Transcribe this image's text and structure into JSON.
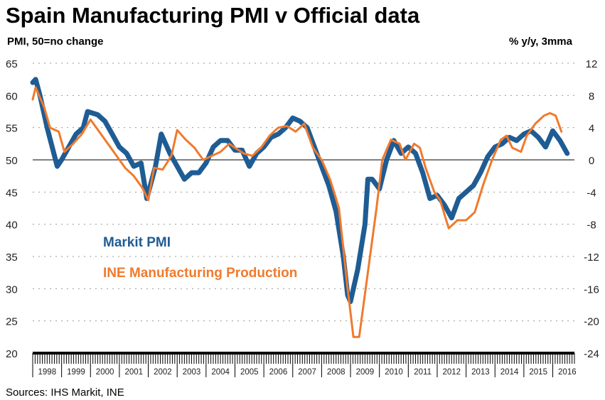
{
  "chart_data": {
    "type": "line",
    "title": "Spain Manufacturing PMI v Official data",
    "ylabel_left": "PMI, 50=no change",
    "ylabel_right": "% y/y, 3mma",
    "source": "Sources: IHS Markit, INE",
    "ylim_left": [
      20,
      65
    ],
    "ylim_right": [
      -24,
      12
    ],
    "yticks_left": [
      "65",
      "60",
      "55",
      "50",
      "45",
      "40",
      "35",
      "30",
      "25",
      "20"
    ],
    "yticks_right": [
      "12",
      "8",
      "4",
      "0",
      "-4",
      "-8",
      "-12",
      "-16",
      "-20",
      "-24"
    ],
    "xlim": [
      1998,
      2016.75
    ],
    "xticks": [
      "1998",
      "1999",
      "2000",
      "2001",
      "2002",
      "2003",
      "2004",
      "2005",
      "2006",
      "2007",
      "2008",
      "2009",
      "2010",
      "2011",
      "2012",
      "2013",
      "2014",
      "2015",
      "2016"
    ],
    "grid": "horizontal dotted",
    "colors": {
      "pmi": "#1f5c94",
      "ine": "#f07a2c"
    },
    "series": [
      {
        "name": "Markit PMI",
        "axis": "left",
        "x": [
          1998.0,
          1998.1,
          1998.25,
          1998.5,
          1998.85,
          1999.0,
          1999.25,
          1999.5,
          1999.75,
          1999.9,
          2000.25,
          2000.5,
          2000.75,
          2001.0,
          2001.25,
          2001.5,
          2001.75,
          2001.95,
          2002.25,
          2002.45,
          2002.75,
          2003.0,
          2003.25,
          2003.5,
          2003.75,
          2004.0,
          2004.25,
          2004.5,
          2004.75,
          2005.0,
          2005.25,
          2005.5,
          2005.75,
          2006.0,
          2006.25,
          2006.5,
          2006.75,
          2007.0,
          2007.25,
          2007.5,
          2007.75,
          2008.0,
          2008.25,
          2008.5,
          2008.75,
          2008.9,
          2009.0,
          2009.25,
          2009.5,
          2009.6,
          2009.75,
          2010.0,
          2010.25,
          2010.5,
          2010.75,
          2011.0,
          2011.25,
          2011.5,
          2011.75,
          2012.0,
          2012.25,
          2012.5,
          2012.75,
          2013.0,
          2013.25,
          2013.5,
          2013.75,
          2014.0,
          2014.25,
          2014.5,
          2014.75,
          2015.0,
          2015.25,
          2015.5,
          2015.75,
          2016.0,
          2016.25,
          2016.5
        ],
        "values": [
          62,
          62.5,
          60,
          55,
          49,
          50,
          52,
          54,
          55,
          57.5,
          57,
          56,
          54,
          52,
          51,
          49,
          49.5,
          44,
          49,
          54,
          51,
          49,
          47,
          48,
          48,
          49.5,
          52,
          53,
          53,
          51.5,
          51.5,
          49,
          51,
          52,
          53.5,
          54,
          55,
          56.5,
          56,
          55,
          52,
          49,
          46,
          42,
          35,
          29,
          28,
          33,
          40,
          47,
          47,
          45.5,
          50,
          53,
          51,
          52,
          51,
          48,
          44,
          44.5,
          43,
          41,
          44,
          45,
          46,
          48,
          50.5,
          52,
          52.5,
          53.5,
          53,
          54,
          54.5,
          53.5,
          52,
          54.5,
          53,
          51
        ]
      },
      {
        "name": "INE Manufacturing Production",
        "axis": "right",
        "x": [
          1998.0,
          1998.1,
          1998.4,
          1998.6,
          1998.9,
          1999.1,
          1999.4,
          1999.7,
          2000.0,
          2000.3,
          2000.6,
          2000.9,
          2001.2,
          2001.5,
          2001.8,
          2002.0,
          2002.2,
          2002.5,
          2002.8,
          2003.0,
          2003.3,
          2003.6,
          2003.9,
          2004.2,
          2004.5,
          2004.8,
          2005.0,
          2005.3,
          2005.6,
          2005.9,
          2006.2,
          2006.5,
          2006.8,
          2007.1,
          2007.4,
          2007.7,
          2008.0,
          2008.3,
          2008.6,
          2008.9,
          2009.1,
          2009.3,
          2009.6,
          2009.9,
          2010.1,
          2010.4,
          2010.7,
          2010.9,
          2011.2,
          2011.4,
          2011.6,
          2011.9,
          2012.1,
          2012.4,
          2012.7,
          2013.0,
          2013.3,
          2013.6,
          2013.9,
          2014.2,
          2014.4,
          2014.6,
          2014.9,
          2015.1,
          2015.4,
          2015.7,
          2015.9,
          2016.1,
          2016.3
        ],
        "values": [
          7.5,
          9,
          6.5,
          4,
          3.5,
          1,
          2,
          3.2,
          5,
          3.5,
          2,
          0.5,
          -1,
          -2,
          -3.5,
          -5,
          -1,
          -1.2,
          0.5,
          3.7,
          2.5,
          1.5,
          0,
          0.5,
          1,
          2,
          1.5,
          0.8,
          0.5,
          1.5,
          3,
          4,
          4.2,
          3.5,
          4.5,
          1.5,
          0,
          -2.5,
          -6,
          -16,
          -22,
          -22,
          -14,
          -6,
          0,
          2.5,
          2,
          0,
          2,
          1.5,
          -1,
          -4,
          -5,
          -8.5,
          -7.5,
          -7.5,
          -6.5,
          -3,
          0,
          2.5,
          3,
          1.5,
          1,
          3,
          4.5,
          5.5,
          5.8,
          5.5,
          3.5
        ]
      }
    ],
    "legend": [
      {
        "label": "Markit PMI",
        "placement": "center-left"
      },
      {
        "label": "INE Manufacturing Production",
        "placement": "center-left"
      }
    ]
  }
}
